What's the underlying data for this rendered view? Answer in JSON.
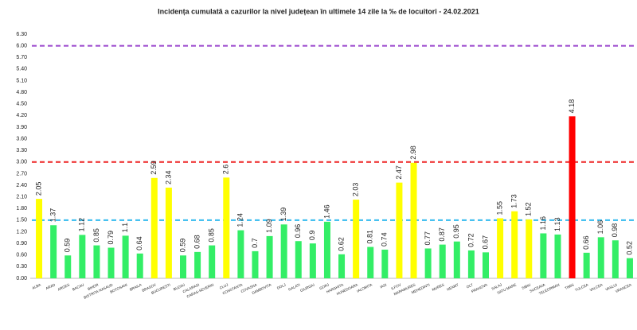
{
  "chart_data": {
    "type": "bar",
    "title": "Incidența cumulată a cazurilor la nivel județean în ultimele 14 zile   la ‰ de locuitori  - 24.02.2021",
    "categories": [
      "ALBA",
      "ARAD",
      "ARGES",
      "BACAU",
      "BIHOR",
      "BISTRITA NASAUD",
      "BOTOSANI",
      "BRAILA",
      "BRASOV",
      "BUCURESTI",
      "BUZAU",
      "CALARASI",
      "CARAS-SEVERIN",
      "CLUJ",
      "CONSTANTA",
      "COVASNA",
      "DAMBOVITA",
      "DOLJ",
      "GALATI",
      "GIURGIU",
      "GORJ",
      "HARGHITA",
      "HUNEDOARA",
      "IALOMITA",
      "IASI",
      "ILFOV",
      "MARAMURES",
      "MEHEDINTI",
      "MURES",
      "NEAMT",
      "OLT",
      "PRAHOVA",
      "SALAJ",
      "SATU MARE",
      "SIBIU",
      "SUCEAVA",
      "TELEORMAN",
      "TIMIS",
      "TULCEA",
      "VALCEA",
      "VASLUI",
      "VRANCEA"
    ],
    "values": [
      2.05,
      1.37,
      0.59,
      1.12,
      0.85,
      0.79,
      1.1,
      0.64,
      2.59,
      2.34,
      0.59,
      0.68,
      0.85,
      2.6,
      1.24,
      0.7,
      1.09,
      1.39,
      0.96,
      0.9,
      1.46,
      0.62,
      2.03,
      0.81,
      0.74,
      2.47,
      2.98,
      0.77,
      0.87,
      0.95,
      0.72,
      0.67,
      1.55,
      1.73,
      1.52,
      1.16,
      1.13,
      4.18,
      0.66,
      1.06,
      0.98,
      0.52
    ],
    "colors": [
      "#ffff00",
      "#33ee66",
      "#33ee66",
      "#33ee66",
      "#33ee66",
      "#33ee66",
      "#33ee66",
      "#33ee66",
      "#ffff00",
      "#ffff00",
      "#33ee66",
      "#33ee66",
      "#33ee66",
      "#ffff00",
      "#33ee66",
      "#33ee66",
      "#33ee66",
      "#33ee66",
      "#33ee66",
      "#33ee66",
      "#33ee66",
      "#33ee66",
      "#ffff00",
      "#33ee66",
      "#33ee66",
      "#ffff00",
      "#ffff00",
      "#33ee66",
      "#33ee66",
      "#33ee66",
      "#33ee66",
      "#33ee66",
      "#ffff00",
      "#ffff00",
      "#ffff00",
      "#33ee66",
      "#33ee66",
      "#ff0000",
      "#33ee66",
      "#33ee66",
      "#33ee66",
      "#33ee66"
    ],
    "ylim": [
      0,
      6.3
    ],
    "yticks": [
      {
        "value": 0,
        "label": "0.00"
      },
      {
        "value": 0.3,
        "label": "0.30"
      },
      {
        "value": 0.6,
        "label": "0.60"
      },
      {
        "value": 0.9,
        "label": "0.90"
      },
      {
        "value": 1.2,
        "label": "1.20"
      },
      {
        "value": 1.5,
        "label": "1.50"
      },
      {
        "value": 1.8,
        "label": "1.80"
      },
      {
        "value": 2.1,
        "label": "2.10"
      },
      {
        "value": 2.4,
        "label": "2.40"
      },
      {
        "value": 2.7,
        "label": "2.70"
      },
      {
        "value": 3,
        "label": "3.00"
      },
      {
        "value": 3.3,
        "label": "3.30"
      },
      {
        "value": 3.6,
        "label": "3.60"
      },
      {
        "value": 3.9,
        "label": "3.90"
      },
      {
        "value": 4.2,
        "label": "4.20"
      },
      {
        "value": 4.5,
        "label": "4.50"
      },
      {
        "value": 4.8,
        "label": "4.80"
      },
      {
        "value": 5.1,
        "label": "5.10"
      },
      {
        "value": 5.4,
        "label": "5.40"
      },
      {
        "value": 5.7,
        "label": "5.70"
      },
      {
        "value": 6,
        "label": "6.00"
      },
      {
        "value": 6.3,
        "label": "6.30"
      }
    ],
    "reference_lines": [
      {
        "value": 1.5,
        "color": "#33bbee"
      },
      {
        "value": 3,
        "color": "#ee2222"
      },
      {
        "value": 6,
        "color": "#9944cc"
      }
    ]
  }
}
